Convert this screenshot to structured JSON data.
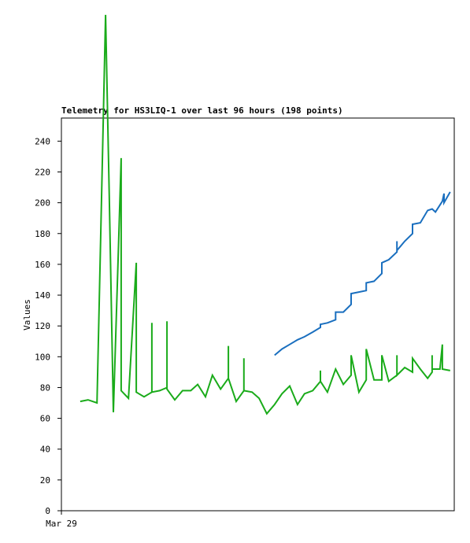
{
  "chart_data": {
    "type": "line",
    "title": "Telemetry for HS3LIQ-1 over last 96 hours (198 points)",
    "ylabel": "Values",
    "xlim": [
      0,
      96
    ],
    "xticks": [
      {
        "value": 0,
        "label": "Mar 29"
      }
    ],
    "ylim": [
      0,
      255
    ],
    "yticks": [
      0,
      20,
      40,
      60,
      80,
      100,
      120,
      140,
      160,
      180,
      200,
      220,
      240
    ],
    "series": [
      {
        "color": "#1aab1a",
        "x": [
          4.6,
          6.5,
          8.7,
          9.6,
          10.8,
          11.7,
          12.7,
          13.9,
          14.6,
          14.6,
          16.4,
          18.3,
          18.3,
          20.2,
          22.1,
          22.1,
          22.1,
          24.0,
          25.8,
          25.8,
          25.8,
          27.7,
          29.6,
          31.6,
          33.3,
          35.2,
          36.9,
          38.9,
          40.8,
          40.8,
          40.8,
          42.7,
          44.6,
          44.6,
          44.6,
          46.6,
          48.3,
          50.2,
          52.1,
          53.9,
          55.8,
          57.7,
          59.4,
          61.4,
          63.3,
          63.3,
          63.3,
          65.0,
          67.0,
          68.9,
          70.8,
          70.8,
          72.7,
          74.5,
          74.5,
          76.4,
          78.3,
          78.3,
          80.0,
          82.0,
          82.0,
          82.0,
          83.9,
          85.8,
          85.8,
          87.7,
          89.5,
          90.6,
          90.6,
          90.6,
          92.5,
          93.1,
          93.1,
          95.0
        ],
        "values": [
          71,
          72,
          70,
          178,
          322,
          204,
          64,
          168,
          229,
          78,
          73,
          161,
          77,
          74,
          77,
          122,
          77,
          78,
          80,
          123,
          79,
          72,
          78,
          78,
          82,
          74,
          88,
          79,
          86,
          107,
          86,
          71,
          78,
          99,
          78,
          77,
          73,
          63,
          69,
          76,
          81,
          69,
          76,
          78,
          84,
          91,
          84,
          77,
          92,
          82,
          88,
          101,
          77,
          85,
          105,
          85,
          85,
          101,
          84,
          88,
          101,
          88,
          93,
          90,
          99,
          92,
          86,
          90,
          101,
          92,
          92,
          108,
          92,
          91
        ]
      },
      {
        "color": "#1a6fbf",
        "x": [
          52.1,
          53.9,
          55.8,
          57.7,
          59.4,
          61.4,
          63.3,
          63.3,
          65.0,
          67.0,
          67.0,
          68.9,
          70.8,
          70.8,
          72.7,
          74.5,
          74.5,
          76.4,
          78.3,
          78.3,
          80.0,
          82.0,
          82.0,
          82.0,
          83.9,
          85.8,
          85.8,
          87.7,
          89.5,
          90.6,
          91.4,
          93.1,
          93.5,
          93.5,
          95.0
        ],
        "values": [
          101,
          105,
          108,
          111,
          113,
          116,
          119,
          121,
          122,
          124,
          129,
          129,
          134,
          141,
          142,
          143,
          148,
          149,
          154,
          161,
          163,
          168,
          175,
          169,
          175,
          180,
          186,
          187,
          195,
          196,
          194,
          201,
          206,
          200,
          207
        ]
      }
    ]
  }
}
